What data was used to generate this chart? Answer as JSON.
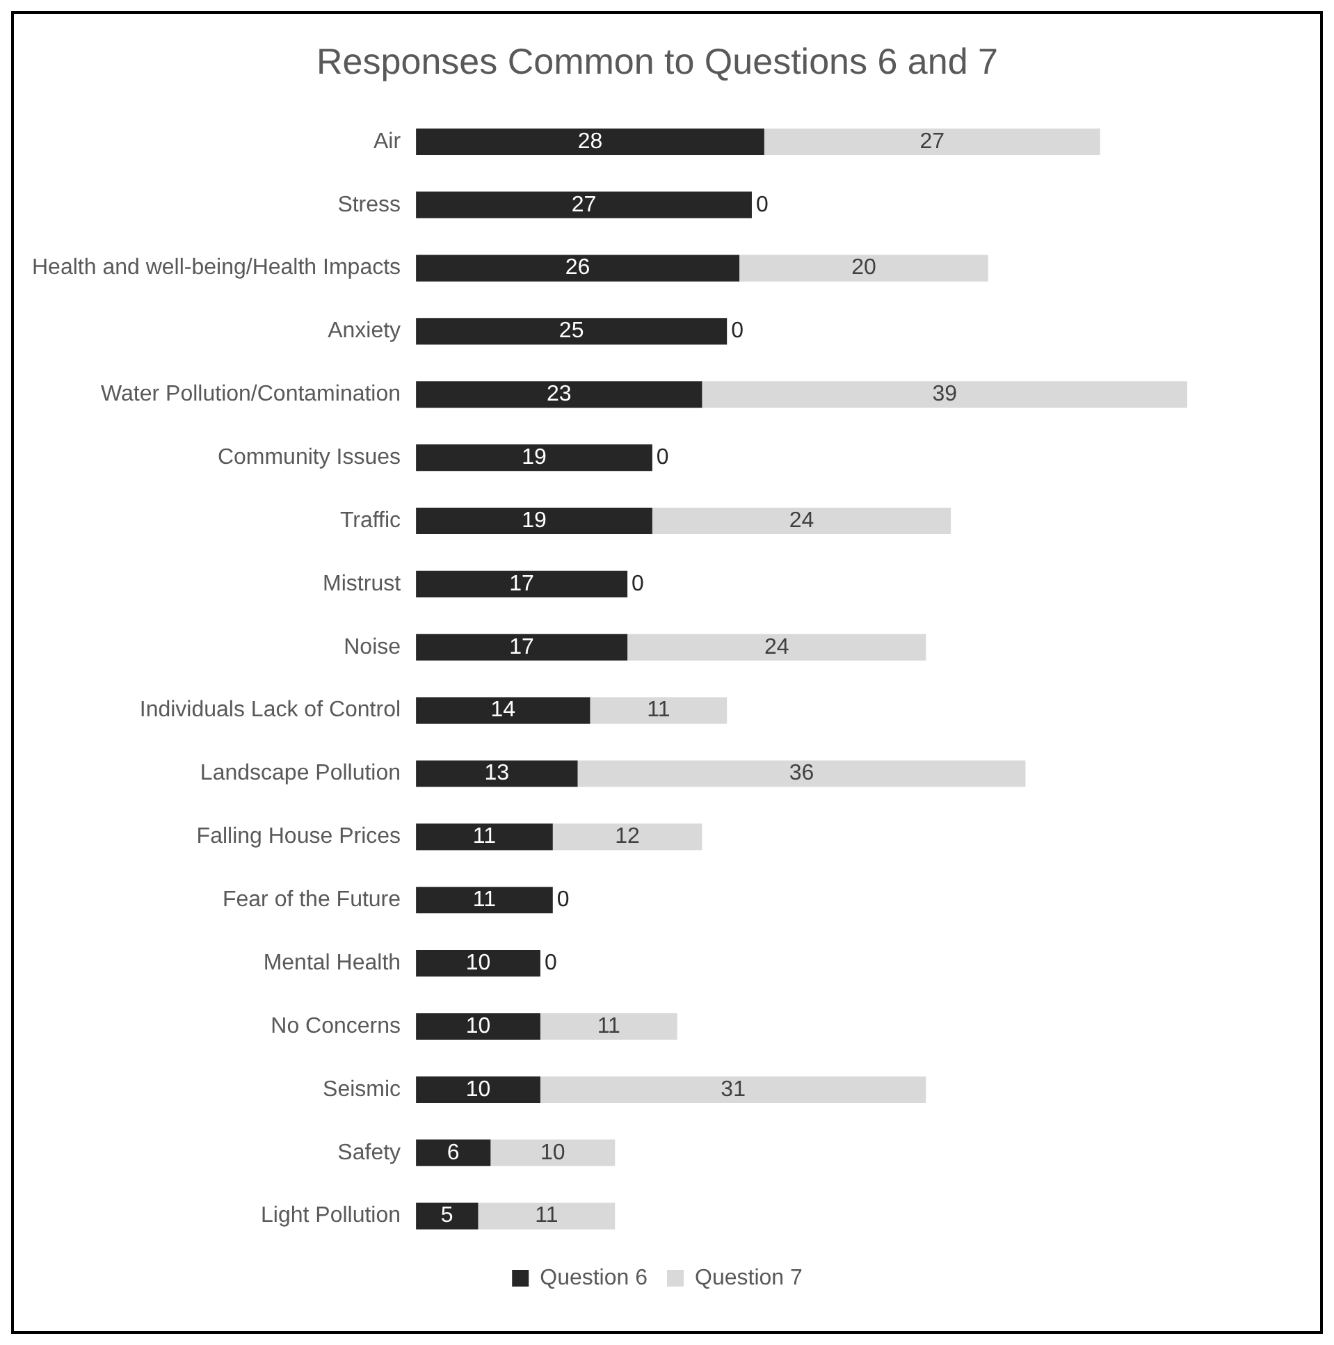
{
  "chart_data": {
    "type": "bar",
    "orientation": "horizontal",
    "stacked": true,
    "title": "Responses Common to Questions 6 and 7",
    "categories": [
      "Air",
      "Stress",
      "Health and well-being/Health Impacts",
      "Anxiety",
      "Water Pollution/Contamination",
      "Community Issues",
      "Traffic",
      "Mistrust",
      "Noise",
      "Individuals Lack of Control",
      "Landscape Pollution",
      "Falling House Prices",
      "Fear of the Future",
      "Mental Health",
      "No Concerns",
      "Seismic",
      "Safety",
      "Light Pollution"
    ],
    "series": [
      {
        "name": "Question 6",
        "color": "#262626",
        "values": [
          28,
          27,
          26,
          25,
          23,
          19,
          19,
          17,
          17,
          14,
          13,
          11,
          11,
          10,
          10,
          10,
          6,
          5
        ]
      },
      {
        "name": "Question 7",
        "color": "#d9d9d9",
        "values": [
          27,
          0,
          20,
          0,
          39,
          0,
          24,
          0,
          24,
          11,
          36,
          12,
          0,
          0,
          11,
          31,
          10,
          11
        ]
      }
    ],
    "data_labels": true,
    "legend": "bottom"
  }
}
